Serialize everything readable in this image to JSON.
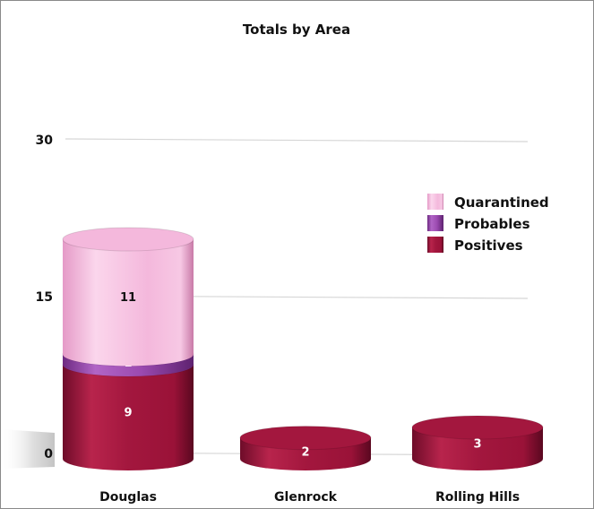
{
  "chart_data": {
    "type": "bar",
    "stacked": true,
    "title": "Totals by Area",
    "categories": [
      "Douglas",
      "Glenrock",
      "Rolling Hills"
    ],
    "series": [
      {
        "name": "Positives",
        "values": [
          9,
          2,
          3
        ],
        "color": "#a3173e",
        "label_color": "#ffffff"
      },
      {
        "name": "Probables",
        "values": [
          1,
          0,
          0
        ],
        "color": "#9b4ab0",
        "label_color": "#ffffff"
      },
      {
        "name": "Quarantined",
        "values": [
          11,
          0,
          0
        ],
        "color": "#f4b8dc",
        "label_color": "#111111"
      }
    ],
    "legend_order": [
      "Quarantined",
      "Probables",
      "Positives"
    ],
    "yticks": [
      0,
      15,
      30
    ],
    "ylim": [
      0,
      30
    ],
    "grid": true,
    "legend_position": "right",
    "xlabel": "",
    "ylabel": ""
  }
}
